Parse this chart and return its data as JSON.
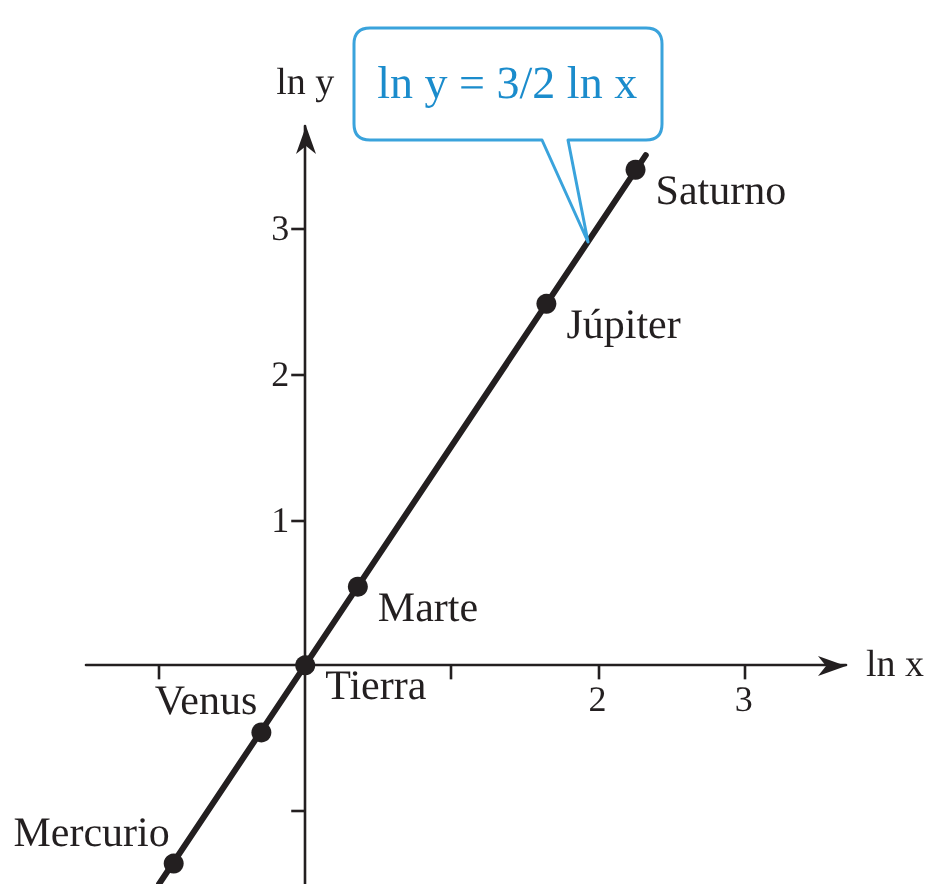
{
  "chart_data": {
    "type": "scatter",
    "xlabel": "ln x",
    "ylabel": "ln y",
    "xlim": [
      -1.5,
      3.7
    ],
    "ylim": [
      -1.5,
      3.7
    ],
    "xticks": [
      {
        "value": -1,
        "label": null
      },
      {
        "value": 1,
        "label": null
      },
      2,
      3
    ],
    "yticks": [
      {
        "value": -1,
        "label": null
      },
      1,
      2,
      3
    ],
    "series": [
      {
        "type": "line",
        "name": "ln y = 3/2 ln x",
        "color": "#231f20",
        "marker": "none",
        "line_style": "solid",
        "x": [
          -1.0,
          2.33
        ],
        "values": [
          -1.5,
          3.5
        ]
      },
      {
        "color": "#231f20",
        "marker": "circle",
        "x": [
          -0.9,
          -0.3,
          0,
          0.36,
          1.65,
          2.26
        ],
        "values": [
          -1.36,
          -0.46,
          0,
          0.54,
          2.48,
          3.4
        ]
      }
    ],
    "annotations": [
      {
        "text": "Mercurio",
        "x": -0.9,
        "y": -1.36
      },
      {
        "text": "Venus",
        "x": -0.3,
        "y": -0.46
      },
      {
        "text": "Tierra",
        "x": 0,
        "y": 0
      },
      {
        "text": "Marte",
        "x": 0.36,
        "y": 0.54
      },
      {
        "text": "Júpiter",
        "x": 1.65,
        "y": 2.48
      },
      {
        "text": "Saturno",
        "x": 2.26,
        "y": 3.4
      }
    ],
    "grid": false,
    "legend": false
  }
}
